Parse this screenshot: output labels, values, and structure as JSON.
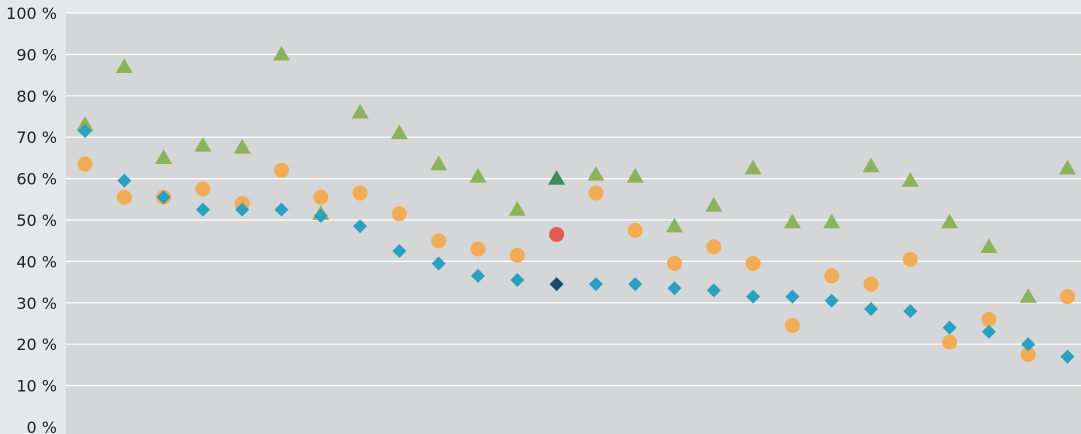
{
  "chart_data": {
    "type": "scatter",
    "title": "",
    "xlabel": "",
    "ylabel": "",
    "ylim": [
      0,
      100
    ],
    "y_ticks": [
      "0 %",
      "10 %",
      "20 %",
      "30 %",
      "40 %",
      "50 %",
      "60 %",
      "70 %",
      "80 %",
      "90 %",
      "100 %"
    ],
    "x_count": 26,
    "grid": true,
    "legend": "none",
    "series": [
      {
        "marker": "triangle",
        "color": "#8cb25a",
        "highlight_index": 12,
        "highlight_color": "#3f8a5e",
        "values": [
          73,
          87,
          65,
          68,
          67.5,
          90,
          51.5,
          76,
          71,
          63.5,
          60.5,
          52.5,
          60,
          61,
          60.5,
          48.5,
          53.5,
          62.5,
          49.5,
          49.5,
          63,
          59.5,
          49.5,
          43.5,
          31.5,
          62.5
        ]
      },
      {
        "marker": "circle",
        "color": "#f0ad55",
        "highlight_index": 12,
        "highlight_color": "#e25a58",
        "values": [
          63.5,
          55.5,
          55.5,
          57.5,
          54,
          62,
          55.5,
          56.5,
          51.5,
          45,
          43,
          41.5,
          46.5,
          56.5,
          47.5,
          39.5,
          43.5,
          39.5,
          24.5,
          36.5,
          34.5,
          40.5,
          20.5,
          26,
          17.5,
          31.5
        ]
      },
      {
        "marker": "diamond",
        "color": "#2aa1c0",
        "highlight_index": 12,
        "highlight_color": "#1a4d6a",
        "values": [
          71.5,
          59.5,
          55.5,
          52.5,
          52.5,
          52.5,
          51,
          48.5,
          42.5,
          39.5,
          36.5,
          35.5,
          34.5,
          34.5,
          34.5,
          33.5,
          33,
          31.5,
          31.5,
          30.5,
          28.5,
          28,
          24,
          23,
          20,
          17
        ]
      }
    ]
  }
}
